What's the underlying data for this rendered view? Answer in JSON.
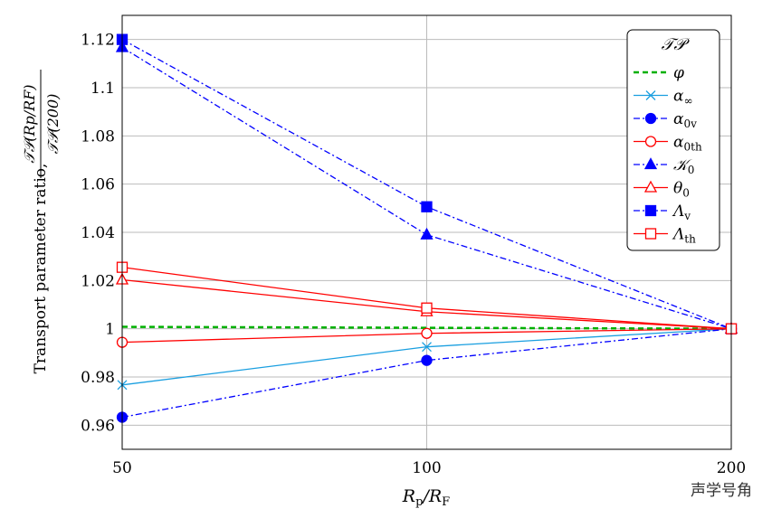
{
  "chart_data": {
    "type": "line",
    "x": [
      50,
      100,
      200
    ],
    "xscale": "log",
    "xlim": [
      50,
      200
    ],
    "ylim": [
      0.95,
      1.13
    ],
    "xticks": [
      "50",
      "100",
      "200"
    ],
    "yticks": [
      0.96,
      0.98,
      1,
      1.02,
      1.04,
      1.06,
      1.08,
      1.1,
      1.12
    ],
    "ytick_labels": [
      "0.96",
      "0.98",
      "1",
      "1.02",
      "1.04",
      "1.06",
      "1.08",
      "1.1",
      "1.12"
    ],
    "xlabel": {
      "main": "R",
      "sub1": "p",
      "mid": "/R",
      "sub2": "F"
    },
    "ylabel": {
      "line1": "Transport parameter ratio,",
      "num": "𝒯𝒫(Rp/RF)",
      "den": "𝒯𝒫(200)"
    },
    "grid": true,
    "legend": {
      "title": "𝒯𝒫",
      "placement": "top-right"
    },
    "series": [
      {
        "name": "φ",
        "sub": "",
        "color": "#00b000",
        "dash": "dashed",
        "marker": "none",
        "values": [
          1.0008,
          1.0004,
          1.0
        ]
      },
      {
        "name": "α",
        "sub": "∞",
        "color": "#1a9fe0",
        "dash": "solid",
        "marker": "cross",
        "values": [
          0.9767,
          0.9925,
          1.0
        ]
      },
      {
        "name": "α",
        "sub": "0v",
        "color": "#0000ff",
        "dash": "dashdot",
        "marker": "circle-filled",
        "values": [
          0.9633,
          0.9869,
          1.0
        ]
      },
      {
        "name": "α",
        "sub": "0th",
        "color": "#ff0000",
        "dash": "solid",
        "marker": "circle-open",
        "values": [
          0.9944,
          0.9981,
          1.0
        ]
      },
      {
        "name": "𝒦",
        "sub": "0",
        "color": "#0000ff",
        "dash": "dashdot",
        "marker": "triangle-filled",
        "values": [
          1.1167,
          1.039,
          1.0
        ]
      },
      {
        "name": "θ",
        "sub": "0",
        "color": "#ff0000",
        "dash": "solid",
        "marker": "triangle-open",
        "values": [
          1.0203,
          1.0071,
          1.0
        ]
      },
      {
        "name": "Λ",
        "sub": "v",
        "color": "#0000ff",
        "dash": "dashdot",
        "marker": "square-filled",
        "values": [
          1.12,
          1.0506,
          1.0
        ]
      },
      {
        "name": "Λ",
        "sub": "th",
        "color": "#ff0000",
        "dash": "solid",
        "marker": "square-open",
        "values": [
          1.0255,
          1.0086,
          1.0
        ]
      }
    ]
  },
  "watermark": "声学号角"
}
